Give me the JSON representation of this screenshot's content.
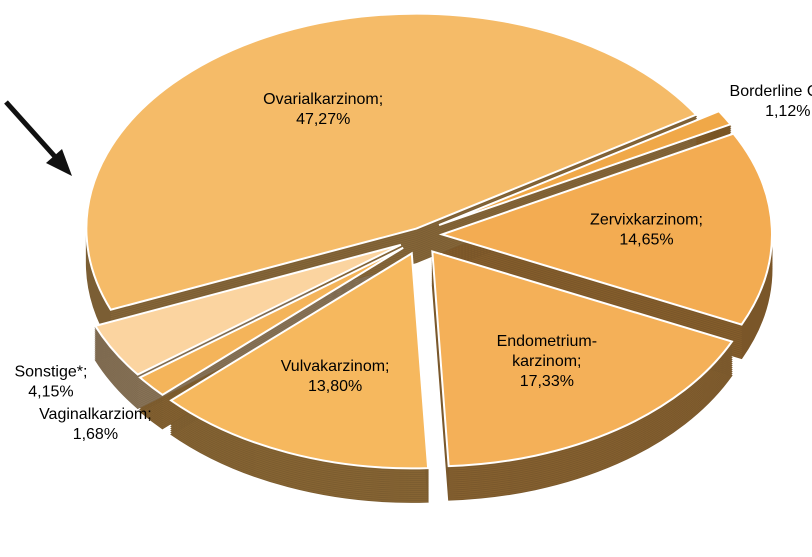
{
  "chart_data": {
    "type": "pie",
    "categories": [
      "Borderline Ovar;",
      "Zervixkarzinom;",
      "Endometrium-karzinom;",
      "Vulvakarzinom;",
      "Vaginalkarziom;",
      "Sonstige*;",
      "Ovarialkarzinom;"
    ],
    "values": [
      1.12,
      14.65,
      17.33,
      13.8,
      1.68,
      4.15,
      47.27
    ],
    "value_labels": [
      "1,12%",
      "14,65%",
      "17,33%",
      "13,80%",
      "1,68%",
      "4,15%",
      "47,27%"
    ],
    "colors": [
      "#f0a848",
      "#f3ac52",
      "#f4b058",
      "#f6b85e",
      "#f4b45a",
      "#fbd4a0",
      "#f5bb68"
    ]
  }
}
